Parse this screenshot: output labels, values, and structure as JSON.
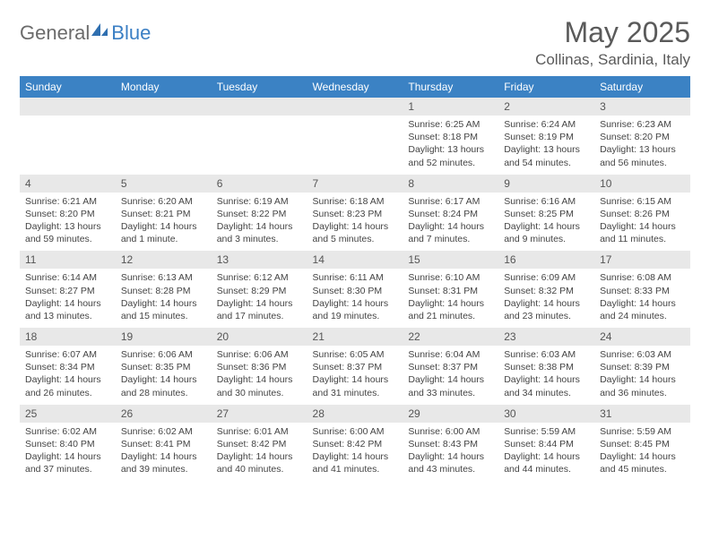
{
  "brand": {
    "name_a": "General",
    "name_b": "Blue"
  },
  "title": "May 2025",
  "location": "Collinas, Sardinia, Italy",
  "colors": {
    "header_bg": "#3b82c4",
    "header_fg": "#ffffff",
    "daynum_bg": "#e8e8e8",
    "text": "#444444",
    "brand_gray": "#6b6b6b",
    "brand_blue": "#3b7fc4"
  },
  "day_names": [
    "Sunday",
    "Monday",
    "Tuesday",
    "Wednesday",
    "Thursday",
    "Friday",
    "Saturday"
  ],
  "weeks": [
    [
      {
        "num": "",
        "sunrise": "",
        "sunset": "",
        "daylight": ""
      },
      {
        "num": "",
        "sunrise": "",
        "sunset": "",
        "daylight": ""
      },
      {
        "num": "",
        "sunrise": "",
        "sunset": "",
        "daylight": ""
      },
      {
        "num": "",
        "sunrise": "",
        "sunset": "",
        "daylight": ""
      },
      {
        "num": "1",
        "sunrise": "Sunrise: 6:25 AM",
        "sunset": "Sunset: 8:18 PM",
        "daylight": "Daylight: 13 hours and 52 minutes."
      },
      {
        "num": "2",
        "sunrise": "Sunrise: 6:24 AM",
        "sunset": "Sunset: 8:19 PM",
        "daylight": "Daylight: 13 hours and 54 minutes."
      },
      {
        "num": "3",
        "sunrise": "Sunrise: 6:23 AM",
        "sunset": "Sunset: 8:20 PM",
        "daylight": "Daylight: 13 hours and 56 minutes."
      }
    ],
    [
      {
        "num": "4",
        "sunrise": "Sunrise: 6:21 AM",
        "sunset": "Sunset: 8:20 PM",
        "daylight": "Daylight: 13 hours and 59 minutes."
      },
      {
        "num": "5",
        "sunrise": "Sunrise: 6:20 AM",
        "sunset": "Sunset: 8:21 PM",
        "daylight": "Daylight: 14 hours and 1 minute."
      },
      {
        "num": "6",
        "sunrise": "Sunrise: 6:19 AM",
        "sunset": "Sunset: 8:22 PM",
        "daylight": "Daylight: 14 hours and 3 minutes."
      },
      {
        "num": "7",
        "sunrise": "Sunrise: 6:18 AM",
        "sunset": "Sunset: 8:23 PM",
        "daylight": "Daylight: 14 hours and 5 minutes."
      },
      {
        "num": "8",
        "sunrise": "Sunrise: 6:17 AM",
        "sunset": "Sunset: 8:24 PM",
        "daylight": "Daylight: 14 hours and 7 minutes."
      },
      {
        "num": "9",
        "sunrise": "Sunrise: 6:16 AM",
        "sunset": "Sunset: 8:25 PM",
        "daylight": "Daylight: 14 hours and 9 minutes."
      },
      {
        "num": "10",
        "sunrise": "Sunrise: 6:15 AM",
        "sunset": "Sunset: 8:26 PM",
        "daylight": "Daylight: 14 hours and 11 minutes."
      }
    ],
    [
      {
        "num": "11",
        "sunrise": "Sunrise: 6:14 AM",
        "sunset": "Sunset: 8:27 PM",
        "daylight": "Daylight: 14 hours and 13 minutes."
      },
      {
        "num": "12",
        "sunrise": "Sunrise: 6:13 AM",
        "sunset": "Sunset: 8:28 PM",
        "daylight": "Daylight: 14 hours and 15 minutes."
      },
      {
        "num": "13",
        "sunrise": "Sunrise: 6:12 AM",
        "sunset": "Sunset: 8:29 PM",
        "daylight": "Daylight: 14 hours and 17 minutes."
      },
      {
        "num": "14",
        "sunrise": "Sunrise: 6:11 AM",
        "sunset": "Sunset: 8:30 PM",
        "daylight": "Daylight: 14 hours and 19 minutes."
      },
      {
        "num": "15",
        "sunrise": "Sunrise: 6:10 AM",
        "sunset": "Sunset: 8:31 PM",
        "daylight": "Daylight: 14 hours and 21 minutes."
      },
      {
        "num": "16",
        "sunrise": "Sunrise: 6:09 AM",
        "sunset": "Sunset: 8:32 PM",
        "daylight": "Daylight: 14 hours and 23 minutes."
      },
      {
        "num": "17",
        "sunrise": "Sunrise: 6:08 AM",
        "sunset": "Sunset: 8:33 PM",
        "daylight": "Daylight: 14 hours and 24 minutes."
      }
    ],
    [
      {
        "num": "18",
        "sunrise": "Sunrise: 6:07 AM",
        "sunset": "Sunset: 8:34 PM",
        "daylight": "Daylight: 14 hours and 26 minutes."
      },
      {
        "num": "19",
        "sunrise": "Sunrise: 6:06 AM",
        "sunset": "Sunset: 8:35 PM",
        "daylight": "Daylight: 14 hours and 28 minutes."
      },
      {
        "num": "20",
        "sunrise": "Sunrise: 6:06 AM",
        "sunset": "Sunset: 8:36 PM",
        "daylight": "Daylight: 14 hours and 30 minutes."
      },
      {
        "num": "21",
        "sunrise": "Sunrise: 6:05 AM",
        "sunset": "Sunset: 8:37 PM",
        "daylight": "Daylight: 14 hours and 31 minutes."
      },
      {
        "num": "22",
        "sunrise": "Sunrise: 6:04 AM",
        "sunset": "Sunset: 8:37 PM",
        "daylight": "Daylight: 14 hours and 33 minutes."
      },
      {
        "num": "23",
        "sunrise": "Sunrise: 6:03 AM",
        "sunset": "Sunset: 8:38 PM",
        "daylight": "Daylight: 14 hours and 34 minutes."
      },
      {
        "num": "24",
        "sunrise": "Sunrise: 6:03 AM",
        "sunset": "Sunset: 8:39 PM",
        "daylight": "Daylight: 14 hours and 36 minutes."
      }
    ],
    [
      {
        "num": "25",
        "sunrise": "Sunrise: 6:02 AM",
        "sunset": "Sunset: 8:40 PM",
        "daylight": "Daylight: 14 hours and 37 minutes."
      },
      {
        "num": "26",
        "sunrise": "Sunrise: 6:02 AM",
        "sunset": "Sunset: 8:41 PM",
        "daylight": "Daylight: 14 hours and 39 minutes."
      },
      {
        "num": "27",
        "sunrise": "Sunrise: 6:01 AM",
        "sunset": "Sunset: 8:42 PM",
        "daylight": "Daylight: 14 hours and 40 minutes."
      },
      {
        "num": "28",
        "sunrise": "Sunrise: 6:00 AM",
        "sunset": "Sunset: 8:42 PM",
        "daylight": "Daylight: 14 hours and 41 minutes."
      },
      {
        "num": "29",
        "sunrise": "Sunrise: 6:00 AM",
        "sunset": "Sunset: 8:43 PM",
        "daylight": "Daylight: 14 hours and 43 minutes."
      },
      {
        "num": "30",
        "sunrise": "Sunrise: 5:59 AM",
        "sunset": "Sunset: 8:44 PM",
        "daylight": "Daylight: 14 hours and 44 minutes."
      },
      {
        "num": "31",
        "sunrise": "Sunrise: 5:59 AM",
        "sunset": "Sunset: 8:45 PM",
        "daylight": "Daylight: 14 hours and 45 minutes."
      }
    ]
  ]
}
